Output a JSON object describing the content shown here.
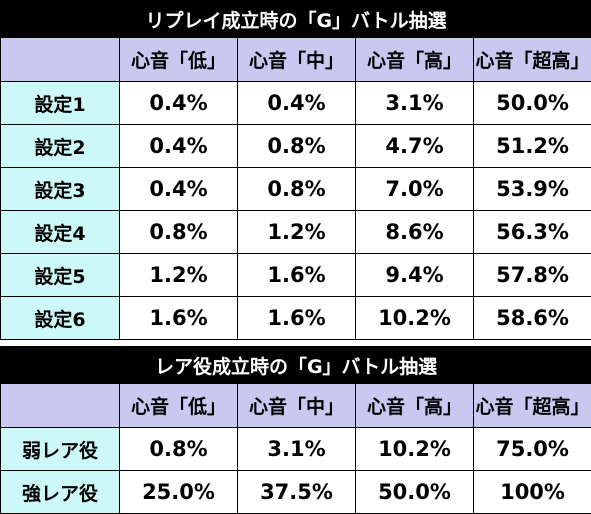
{
  "table1": {
    "title": "リプレイ成立時の「G」バトル抽選",
    "columns": [
      "心音「低」",
      "心音「中」",
      "心音「高」",
      "心音「超高」"
    ],
    "rows": [
      {
        "label": "設定1",
        "values": [
          "0.4%",
          "0.4%",
          "3.1%",
          "50.0%"
        ]
      },
      {
        "label": "設定2",
        "values": [
          "0.4%",
          "0.8%",
          "4.7%",
          "51.2%"
        ]
      },
      {
        "label": "設定3",
        "values": [
          "0.4%",
          "0.8%",
          "7.0%",
          "53.9%"
        ]
      },
      {
        "label": "設定4",
        "values": [
          "0.8%",
          "1.2%",
          "8.6%",
          "56.3%"
        ]
      },
      {
        "label": "設定5",
        "values": [
          "1.2%",
          "1.6%",
          "9.4%",
          "57.8%"
        ]
      },
      {
        "label": "設定6",
        "values": [
          "1.6%",
          "1.6%",
          "10.2%",
          "58.6%"
        ]
      }
    ]
  },
  "table2": {
    "title": "レア役成立時の「G」バトル抽選",
    "columns": [
      "心音「低」",
      "心音「中」",
      "心音「高」",
      "心音「超高」"
    ],
    "rows": [
      {
        "label": "弱レア役",
        "values": [
          "0.8%",
          "3.1%",
          "10.2%",
          "75.0%"
        ]
      },
      {
        "label": "強レア役",
        "values": [
          "25.0%",
          "37.5%",
          "50.0%",
          "100%"
        ]
      }
    ]
  },
  "colors": {
    "title_bg": "#000000",
    "header_bg": "#c8c8f0",
    "row_label_bg": "#ccf8f8",
    "cell_bg": "#ffffff"
  }
}
